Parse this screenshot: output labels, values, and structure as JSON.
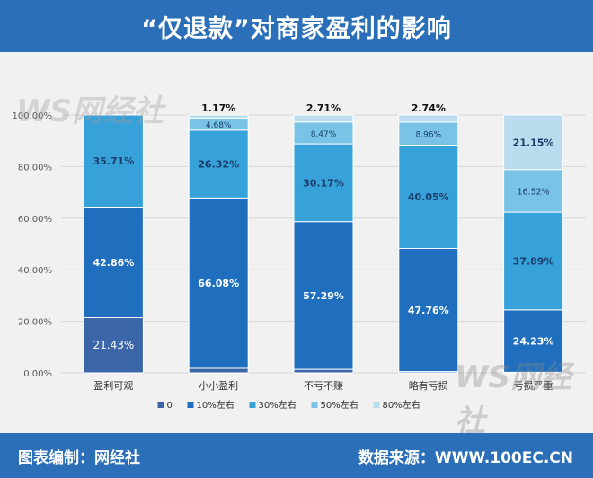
{
  "header": {
    "title": "“仅退款”对商家盈利的影响"
  },
  "footer": {
    "left": "图表编制：网经社",
    "right": "数据来源：WWW.100EC.CN"
  },
  "watermark": {
    "logo": "WS网经社"
  },
  "colors": {
    "series": [
      "#3b66a8",
      "#1f6fbe",
      "#37a1d9",
      "#79c4e6",
      "#b9dcef"
    ],
    "header": "#2a6fb8",
    "plot_bg": "#f1f1f1"
  },
  "chart_data": {
    "type": "bar",
    "stacked": true,
    "title": "“仅退款”对商家盈利的影响",
    "categories": [
      "盈利可观",
      "小小盈利",
      "不亏不赚",
      "略有亏损",
      "亏损严重"
    ],
    "series": [
      {
        "name": "0",
        "values": [
          21.43,
          1.75,
          1.36,
          0.5,
          0.22
        ]
      },
      {
        "name": "10%左右",
        "values": [
          42.86,
          66.08,
          57.29,
          47.76,
          24.23
        ]
      },
      {
        "name": "30%左右",
        "values": [
          35.71,
          26.32,
          30.17,
          40.05,
          37.89
        ]
      },
      {
        "name": "50%左右",
        "values": [
          0,
          4.68,
          8.47,
          8.96,
          16.52
        ]
      },
      {
        "name": "80%左右",
        "values": [
          0,
          1.17,
          2.71,
          2.74,
          21.15
        ]
      }
    ],
    "data_labels": [
      [
        "21.43%",
        "42.86%",
        "35.71%",
        "",
        ""
      ],
      [
        "1.75%",
        "66.08%",
        "26.32%",
        "4.68%",
        "1.17%"
      ],
      [
        "1.36%",
        "57.29%",
        "30.17%",
        "8.47%",
        "2.71%"
      ],
      [
        "0.5%",
        "47.76%",
        "40.05%",
        "8.96%",
        "2.74%"
      ],
      [
        "0.22%",
        "24.23%",
        "37.89%",
        "16.52%",
        "21.15%"
      ]
    ],
    "yticks": [
      "0.00%",
      "20.00%",
      "40.00%",
      "60.00%",
      "80.00%",
      "100.00%"
    ],
    "ylim": [
      0,
      100
    ],
    "grid": true,
    "legend_position": "bottom"
  }
}
